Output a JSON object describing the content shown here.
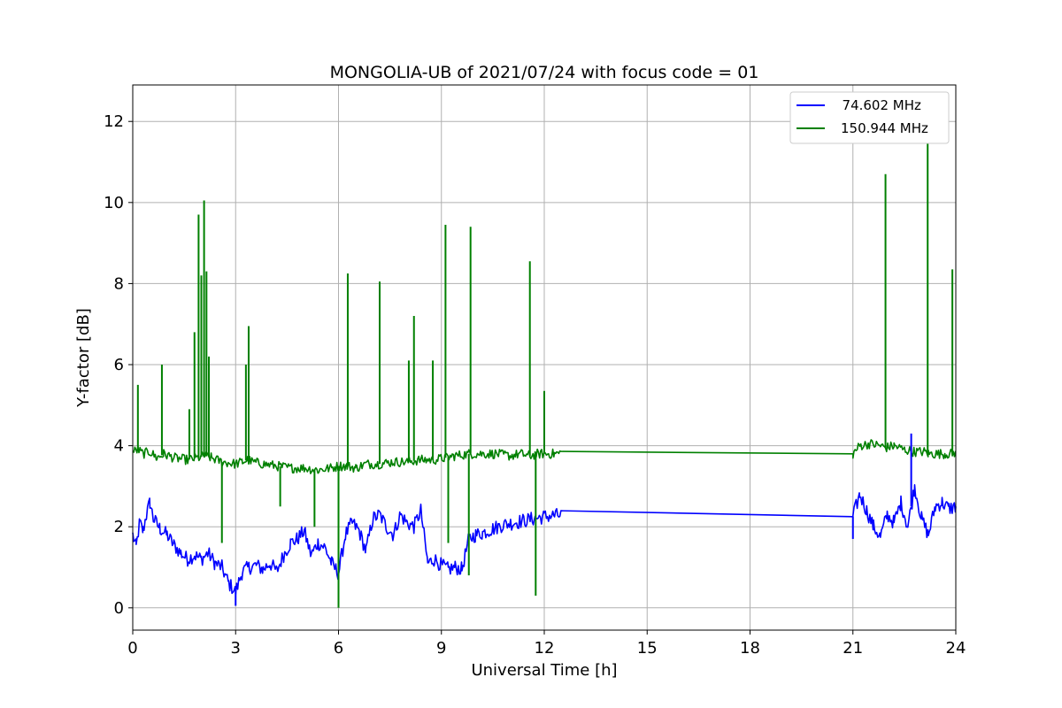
{
  "chart_data": {
    "type": "line",
    "title": "MONGOLIA-UB of 2021/07/24 with focus code = 01",
    "xlabel": "Universal Time [h]",
    "ylabel": "Y-factor [dB]",
    "xlim": [
      0,
      24
    ],
    "ylim": [
      -0.55,
      12.9
    ],
    "xticks": [
      0,
      3,
      6,
      9,
      12,
      15,
      18,
      21,
      24
    ],
    "yticks": [
      0,
      2,
      4,
      6,
      8,
      10,
      12
    ],
    "grid": true,
    "legend_position": "top-right",
    "series": [
      {
        "name": "  74.602 MHz",
        "color": "#0000ff",
        "x": [
          0,
          0.1,
          0.2,
          0.3,
          0.4,
          0.5,
          0.6,
          0.8,
          1.0,
          1.2,
          1.4,
          1.6,
          1.8,
          2.0,
          2.2,
          2.4,
          2.6,
          2.8,
          3.0,
          3.2,
          3.4,
          3.6,
          3.8,
          4.0,
          4.2,
          4.4,
          4.6,
          4.8,
          5.0,
          5.2,
          5.4,
          5.6,
          5.8,
          6.0,
          6.2,
          6.4,
          6.6,
          6.8,
          7.0,
          7.2,
          7.4,
          7.6,
          7.8,
          8.0,
          8.2,
          8.4,
          8.6,
          8.8,
          9.0,
          9.2,
          9.4,
          9.6,
          9.8,
          10.0,
          10.2,
          10.5,
          10.8,
          11.1,
          11.4,
          11.7,
          12.0,
          12.3,
          12.5,
          21.0,
          21.2,
          21.4,
          21.6,
          21.8,
          22.0,
          22.2,
          22.4,
          22.6,
          22.8,
          23.0,
          23.2,
          23.4,
          23.6,
          23.8,
          24.0
        ],
        "values": [
          1.8,
          1.5,
          2.1,
          1.9,
          2.3,
          2.6,
          2.2,
          1.95,
          1.8,
          1.55,
          1.35,
          1.2,
          1.3,
          1.2,
          1.35,
          1.1,
          1.0,
          0.6,
          0.4,
          0.9,
          1.0,
          1.05,
          0.95,
          1.1,
          0.9,
          1.3,
          1.6,
          1.7,
          1.9,
          1.3,
          1.6,
          1.5,
          1.1,
          0.85,
          1.8,
          2.1,
          1.9,
          1.4,
          2.2,
          2.3,
          2.0,
          1.8,
          2.3,
          2.1,
          2.0,
          2.4,
          1.1,
          1.2,
          1.05,
          0.95,
          1.0,
          0.95,
          1.7,
          1.8,
          1.85,
          1.95,
          2.05,
          2.1,
          2.15,
          2.2,
          2.25,
          2.28,
          2.28,
          2.25,
          2.8,
          2.4,
          2.0,
          1.75,
          2.3,
          2.1,
          2.6,
          2.0,
          3.0,
          2.2,
          1.8,
          2.5,
          2.6,
          2.45,
          2.5
        ]
      },
      {
        "name": "150.944 MHz",
        "color": "#008000",
        "x": [
          0,
          0.15,
          0.3,
          0.5,
          0.7,
          0.83,
          0.9,
          1.2,
          1.6,
          1.9,
          2.1,
          2.3,
          2.6,
          3.0,
          3.2,
          3.35,
          3.5,
          3.8,
          4.2,
          4.6,
          5.0,
          5.4,
          5.8,
          6.0,
          6.25,
          6.5,
          6.8,
          7.2,
          7.6,
          8.0,
          8.4,
          8.8,
          9.1,
          9.4,
          9.8,
          10.2,
          10.6,
          11.0,
          11.3,
          11.58,
          11.8,
          12.0,
          12.3,
          12.5,
          21.0,
          21.2,
          21.5,
          21.8,
          21.95,
          22.2,
          22.5,
          22.8,
          23.1,
          23.2,
          23.4,
          23.7,
          23.9,
          24.0
        ],
        "values": [
          3.85,
          3.9,
          3.8,
          3.85,
          3.7,
          3.75,
          3.8,
          3.7,
          3.65,
          3.7,
          3.75,
          3.7,
          3.6,
          3.55,
          3.6,
          3.65,
          3.6,
          3.55,
          3.5,
          3.45,
          3.45,
          3.4,
          3.45,
          3.5,
          3.5,
          3.45,
          3.55,
          3.55,
          3.6,
          3.6,
          3.65,
          3.65,
          3.7,
          3.75,
          3.8,
          3.8,
          3.8,
          3.75,
          3.8,
          3.75,
          3.8,
          3.8,
          3.8,
          3.82,
          3.8,
          4.0,
          4.05,
          4.0,
          3.95,
          4.0,
          3.9,
          3.85,
          3.85,
          3.8,
          3.8,
          3.8,
          3.8,
          3.85
        ]
      }
    ],
    "spikes": [
      {
        "series": 1,
        "x": 0.15,
        "y": 5.5
      },
      {
        "series": 1,
        "x": 0.85,
        "y": 6.0
      },
      {
        "series": 1,
        "x": 1.65,
        "y": 4.9
      },
      {
        "series": 1,
        "x": 1.8,
        "y": 6.8
      },
      {
        "series": 1,
        "x": 1.92,
        "y": 9.7
      },
      {
        "series": 1,
        "x": 2.0,
        "y": 8.2
      },
      {
        "series": 1,
        "x": 2.08,
        "y": 10.05
      },
      {
        "series": 1,
        "x": 2.15,
        "y": 8.3
      },
      {
        "series": 1,
        "x": 2.22,
        "y": 6.2
      },
      {
        "series": 1,
        "x": 3.3,
        "y": 6.0
      },
      {
        "series": 1,
        "x": 3.38,
        "y": 6.95
      },
      {
        "series": 1,
        "x": 6.27,
        "y": 8.25
      },
      {
        "series": 1,
        "x": 7.2,
        "y": 8.05
      },
      {
        "series": 1,
        "x": 8.05,
        "y": 6.1
      },
      {
        "series": 1,
        "x": 8.2,
        "y": 7.2
      },
      {
        "series": 1,
        "x": 8.75,
        "y": 6.1
      },
      {
        "series": 1,
        "x": 9.12,
        "y": 9.45
      },
      {
        "series": 1,
        "x": 9.85,
        "y": 9.4
      },
      {
        "series": 1,
        "x": 11.58,
        "y": 8.55
      },
      {
        "series": 1,
        "x": 12.0,
        "y": 5.35
      },
      {
        "series": 1,
        "x": 21.95,
        "y": 10.7
      },
      {
        "series": 1,
        "x": 23.18,
        "y": 12.3
      },
      {
        "series": 1,
        "x": 23.9,
        "y": 8.35
      }
    ],
    "dips": [
      {
        "series": 1,
        "x": 2.6,
        "y": 1.6
      },
      {
        "series": 1,
        "x": 4.3,
        "y": 2.5
      },
      {
        "series": 1,
        "x": 5.3,
        "y": 2.0
      },
      {
        "series": 1,
        "x": 6.0,
        "y": 0.0
      },
      {
        "series": 1,
        "x": 9.2,
        "y": 1.6
      },
      {
        "series": 1,
        "x": 9.8,
        "y": 0.8
      },
      {
        "series": 1,
        "x": 11.75,
        "y": 0.3
      },
      {
        "series": 0,
        "x": 3.0,
        "y": 0.05
      },
      {
        "series": 0,
        "x": 21.0,
        "y": 1.7
      },
      {
        "series": 0,
        "x": 22.7,
        "y": 4.3
      }
    ]
  }
}
